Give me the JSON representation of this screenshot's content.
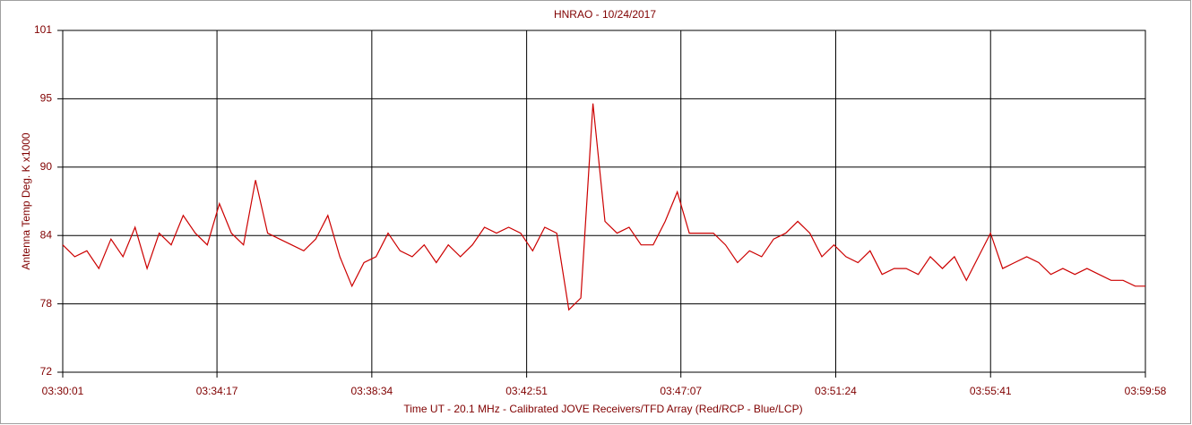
{
  "chart_data": {
    "type": "line",
    "title": "HNRAO - 10/24/2017",
    "x_label": "Time UT - 20.1 MHz - Calibrated JOVE Receivers/TFD Array (Red/RCP - Blue/LCP)",
    "y_label": "Antenna Temp Deg. K x1000",
    "x": [
      "03:30:01",
      "03:30:21",
      "03:30:41",
      "03:31:01",
      "03:31:21",
      "03:31:41",
      "03:32:01",
      "03:32:21",
      "03:32:41",
      "03:33:01",
      "03:33:21",
      "03:33:41",
      "03:34:01",
      "03:34:21",
      "03:34:41",
      "03:35:01",
      "03:35:21",
      "03:35:41",
      "03:36:01",
      "03:36:21",
      "03:36:41",
      "03:37:01",
      "03:37:21",
      "03:37:41",
      "03:38:01",
      "03:38:21",
      "03:38:41",
      "03:39:01",
      "03:39:21",
      "03:39:41",
      "03:40:01",
      "03:40:21",
      "03:40:41",
      "03:41:01",
      "03:41:21",
      "03:41:41",
      "03:42:01",
      "03:42:21",
      "03:42:41",
      "03:43:01",
      "03:43:21",
      "03:43:41",
      "03:44:01",
      "03:44:21",
      "03:44:41",
      "03:45:01",
      "03:45:21",
      "03:45:41",
      "03:46:01",
      "03:46:21",
      "03:46:41",
      "03:47:01",
      "03:47:21",
      "03:47:41",
      "03:48:01",
      "03:48:21",
      "03:48:41",
      "03:49:01",
      "03:49:21",
      "03:49:41",
      "03:50:01",
      "03:50:21",
      "03:50:41",
      "03:51:01",
      "03:51:21",
      "03:51:41",
      "03:52:01",
      "03:52:21",
      "03:52:41",
      "03:53:01",
      "03:53:21",
      "03:53:41",
      "03:54:01",
      "03:54:21",
      "03:54:41",
      "03:55:01",
      "03:55:21",
      "03:55:41",
      "03:56:01",
      "03:56:21",
      "03:56:41",
      "03:57:01",
      "03:57:21",
      "03:57:41",
      "03:58:01",
      "03:58:21",
      "03:58:41",
      "03:59:01",
      "03:59:21",
      "03:59:41",
      "03:59:58"
    ],
    "series": [
      {
        "color": "#cc0000",
        "values": [
          83,
          82,
          82.5,
          81,
          83.5,
          82,
          84.5,
          81,
          84,
          83,
          85.5,
          84,
          83,
          86.5,
          84,
          83,
          88.5,
          84,
          83.5,
          83,
          82.5,
          83.5,
          85.5,
          82,
          79.5,
          81.5,
          82,
          84,
          82.5,
          82,
          83,
          81.5,
          83,
          82,
          83,
          84.5,
          84,
          84.5,
          84,
          82.5,
          84.5,
          84,
          77.5,
          78.5,
          95,
          85,
          84,
          84.5,
          83,
          83,
          85,
          87.5,
          84,
          84,
          84,
          83,
          81.5,
          82.5,
          82,
          83.5,
          84,
          85,
          84,
          82,
          83,
          82,
          81.5,
          82.5,
          80.5,
          81,
          81,
          80.5,
          82,
          81,
          82,
          80,
          82,
          84,
          81,
          81.5,
          82,
          81.5,
          80.5,
          81,
          80.5,
          81,
          80.5,
          80,
          80,
          79.5,
          79.5
        ]
      }
    ],
    "xlim": [
      "03:30:01",
      "03:59:58"
    ],
    "xticks": [
      "03:30:01",
      "03:34:17",
      "03:38:34",
      "03:42:51",
      "03:47:07",
      "03:51:24",
      "03:55:41",
      "03:59:58"
    ],
    "ylim": [
      72.2,
      101.2
    ],
    "yticks": [
      {
        "value": 72.2,
        "label": "72"
      },
      78,
      {
        "value": 83.8,
        "label": "84"
      },
      {
        "value": 89.6,
        "label": "90"
      },
      {
        "value": 95.4,
        "label": "95"
      },
      {
        "value": 101.2,
        "label": "101"
      }
    ],
    "grid": true
  }
}
